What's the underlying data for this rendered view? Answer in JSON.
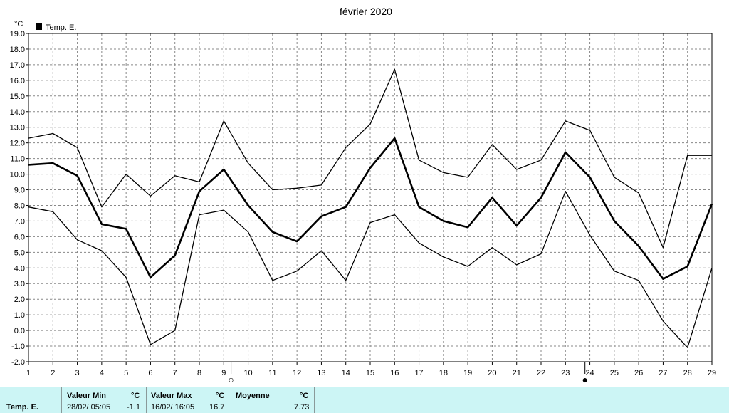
{
  "chart_data": {
    "type": "line",
    "title": "février 2020",
    "ylabel": "°C",
    "legend": {
      "label": "Temp. E.",
      "placement": "top-left"
    },
    "x": [
      1,
      2,
      3,
      4,
      5,
      6,
      7,
      8,
      9,
      10,
      11,
      12,
      13,
      14,
      15,
      16,
      17,
      18,
      19,
      20,
      21,
      22,
      23,
      24,
      25,
      26,
      27,
      28,
      29
    ],
    "ylim": [
      -2.0,
      19.0
    ],
    "yticks": [
      "-2.0",
      "-1.0",
      "0.0",
      "1.0",
      "2.0",
      "3.0",
      "4.0",
      "5.0",
      "6.0",
      "7.0",
      "8.0",
      "9.0",
      "10.0",
      "11.0",
      "12.0",
      "13.0",
      "14.0",
      "15.0",
      "16.0",
      "17.0",
      "18.0",
      "19.0"
    ],
    "grid": true,
    "series": [
      {
        "role": "max",
        "values": [
          12.3,
          12.6,
          11.7,
          7.9,
          10.0,
          8.6,
          9.9,
          9.5,
          13.4,
          10.7,
          9.0,
          9.1,
          9.3,
          11.7,
          13.2,
          16.7,
          10.9,
          10.1,
          9.8,
          11.9,
          10.3,
          10.9,
          13.4,
          12.8,
          9.8,
          8.8,
          5.3,
          11.2,
          11.2
        ]
      },
      {
        "role": "mean",
        "values": [
          10.6,
          10.7,
          9.9,
          6.8,
          6.5,
          3.4,
          4.8,
          8.9,
          10.3,
          8.0,
          6.3,
          5.7,
          7.3,
          7.9,
          10.4,
          12.3,
          7.9,
          7.0,
          6.6,
          8.5,
          6.7,
          8.5,
          11.4,
          9.8,
          7.0,
          5.4,
          3.3,
          4.1,
          8.1
        ]
      },
      {
        "role": "min",
        "values": [
          7.9,
          7.6,
          5.8,
          5.1,
          3.4,
          -0.9,
          0.0,
          7.4,
          7.7,
          6.3,
          3.2,
          3.8,
          5.1,
          3.2,
          6.9,
          7.4,
          5.6,
          4.7,
          4.1,
          5.3,
          4.2,
          4.9,
          8.9,
          6.1,
          3.8,
          3.2,
          0.6,
          -1.1,
          4.0
        ]
      }
    ],
    "moon_markers": [
      {
        "x": 9.3,
        "symbol": "○"
      },
      {
        "x": 23.8,
        "symbol": "●"
      }
    ]
  },
  "footer": {
    "series_label": "Temp. E.",
    "min": {
      "label": "Valeur Min",
      "unit": "°C",
      "date": "28/02/  05:05",
      "value": "-1.1"
    },
    "max": {
      "label": "Valeur Max",
      "unit": "°C",
      "date": "16/02/  16:05",
      "value": "16.7"
    },
    "mean": {
      "label": "Moyenne",
      "unit": "°C",
      "value": "7.73"
    }
  },
  "colors": {
    "footer_bg": "#ccf5f5",
    "grid": "#888888",
    "line": "#000000"
  }
}
